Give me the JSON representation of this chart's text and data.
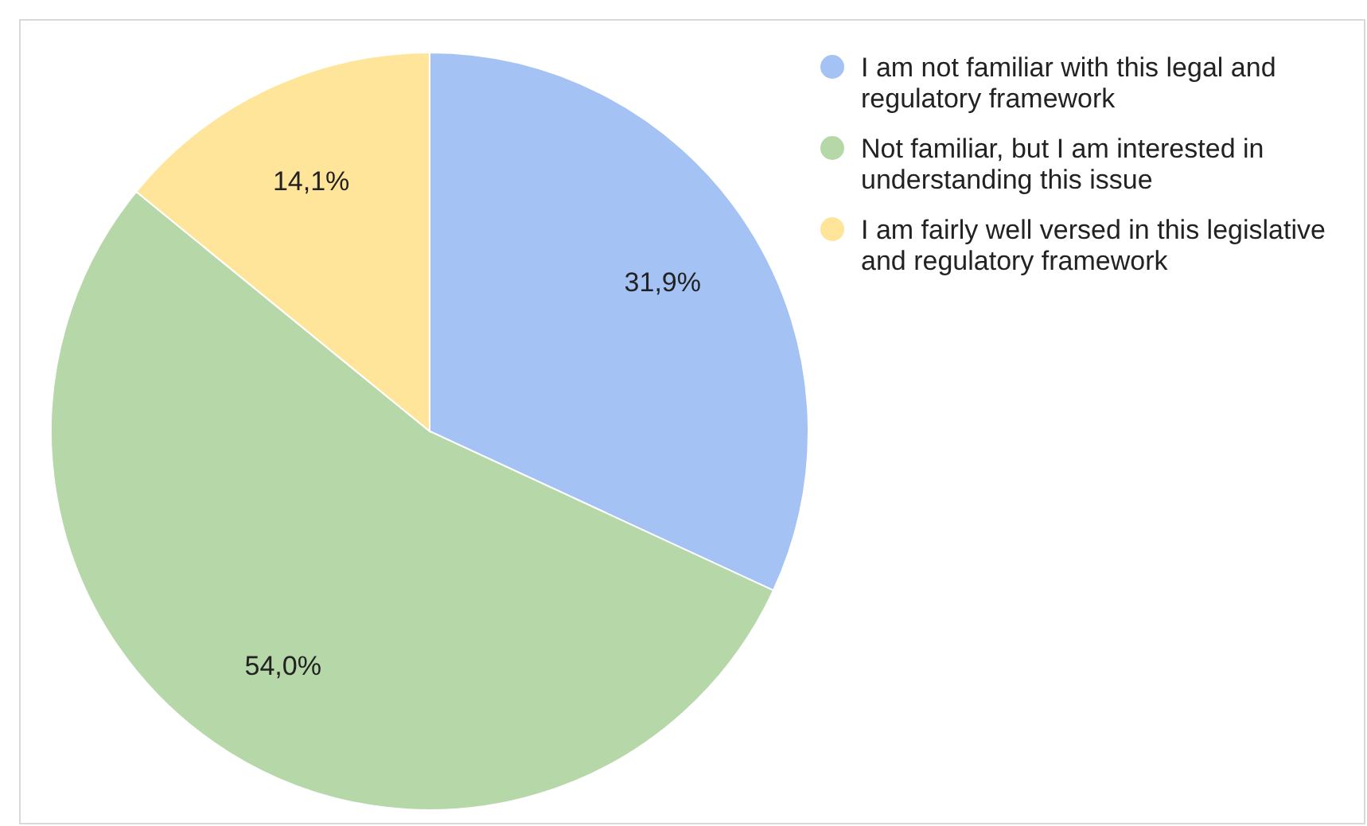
{
  "chart_data": {
    "type": "pie",
    "categories": [
      "I am not familiar with this legal and regulatory framework",
      "Not familiar, but I am interested in understanding this issue",
      "I am fairly well versed in this legislative and regulatory framework"
    ],
    "values": [
      31.9,
      54.0,
      14.1
    ],
    "colors": [
      "#a4c2f4",
      "#b6d7a8",
      "#ffe599"
    ],
    "value_labels": [
      "31,9%",
      "54,0%",
      "14,1%"
    ],
    "legend": "top right"
  }
}
